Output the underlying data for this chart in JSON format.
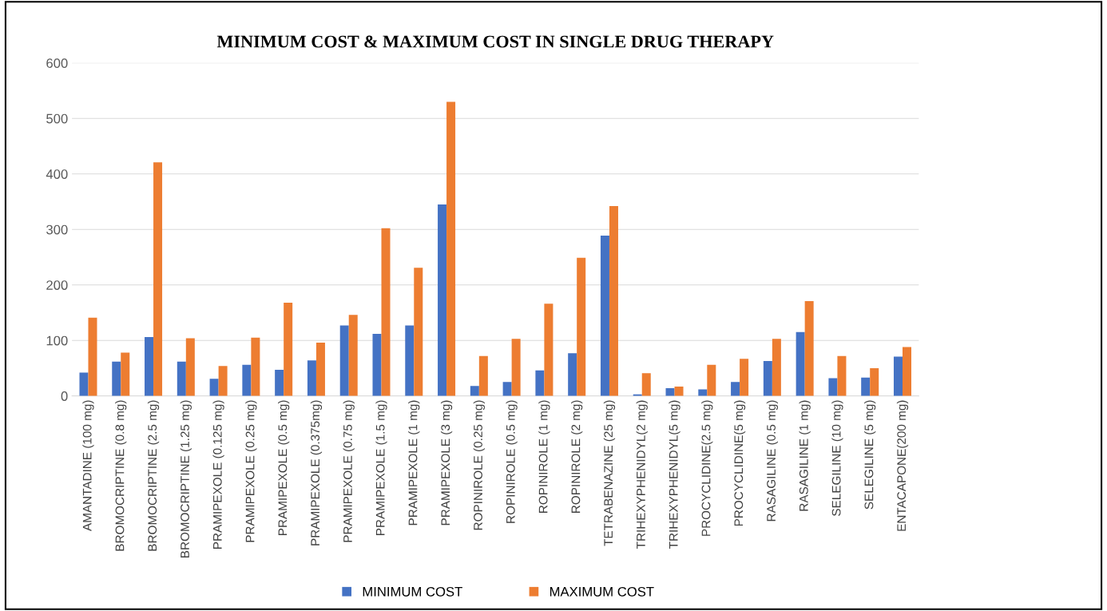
{
  "chart_data": {
    "type": "bar",
    "title": "MINIMUM COST & MAXIMUM COST IN SINGLE DRUG THERAPY",
    "categories": [
      "AMANTADINE (100 mg)",
      "BROMOCRIPTINE (0.8 mg)",
      "BROMOCRIPTINE (2.5 mg)",
      "BROMOCRIPTINE (1.25 mg)",
      "PRAMIPEXOLE (0.125 mg)",
      "PRAMIPEXOLE (0.25 mg)",
      "PRAMIPEXOLE (0.5 mg)",
      "PRAMIPEXOLE (0.375mg)",
      "PRAMIPEXOLE (0.75 mg)",
      "PRAMIPEXOLE (1.5 mg)",
      "PRAMIPEXOLE (1 mg)",
      "PRAMIPEXOLE (3 mg)",
      "ROPINIROLE (0.25 mg)",
      "ROPINIROLE (0.5 mg)",
      "ROPINIROLE (1 mg)",
      "ROPINIROLE (2 mg)",
      "TETRABENAZINE (25 mg)",
      "TRIHEXYPHENIDYL(2 mg)",
      "TRIHEXYPHENIDYL(5 mg)",
      "PROCYCLIDINE(2.5 mg)",
      "PROCYCLIDINE(5 mg)",
      "RASAGILINE (0.5 mg)",
      "RASAGILINE (1 mg)",
      "SELEGILINE (10 mg)",
      "SELEGILINE (5 mg)",
      "ENTACAPONE(200 mg)"
    ],
    "series": [
      {
        "name": "MINIMUM COST",
        "color": "#4472c4",
        "values": [
          42,
          62,
          106,
          62,
          31,
          56,
          47,
          64,
          127,
          112,
          127,
          345,
          18,
          25,
          46,
          77,
          289,
          3,
          14,
          12,
          25,
          63,
          115,
          32,
          33,
          71
        ]
      },
      {
        "name": "MAXIMUM COST",
        "color": "#ed7d31",
        "values": [
          141,
          78,
          421,
          104,
          54,
          105,
          168,
          96,
          146,
          302,
          231,
          530,
          72,
          103,
          166,
          249,
          342,
          41,
          17,
          56,
          67,
          103,
          171,
          72,
          50,
          88
        ]
      }
    ],
    "ylim": [
      0,
      600
    ],
    "yticks": [
      0,
      100,
      200,
      300,
      400,
      500,
      600
    ],
    "grid": "y",
    "legend": "bottom"
  }
}
